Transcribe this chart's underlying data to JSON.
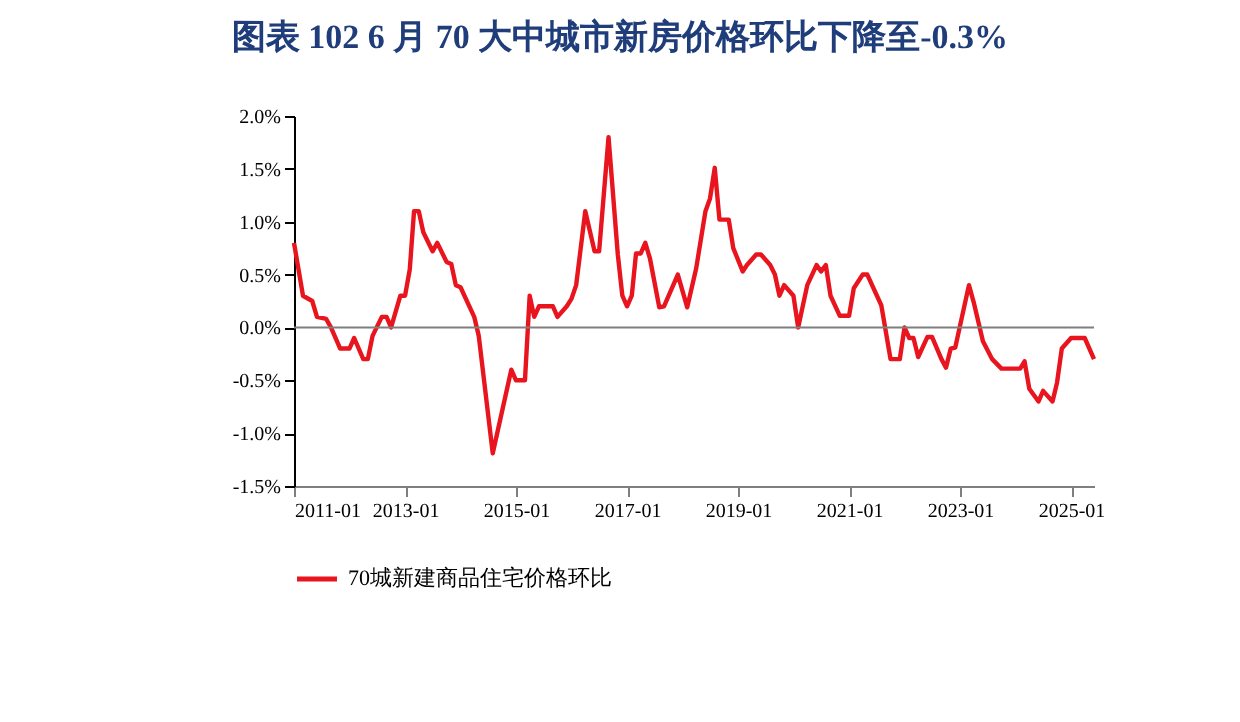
{
  "chart_data": {
    "type": "line",
    "title": "图表 102   6 月 70 大中城市新房价格环比下降至-0.3%",
    "x": [
      "2011-01",
      "2011-03",
      "2011-05",
      "2011-06",
      "2011-08",
      "2011-09",
      "2011-11",
      "2012-01",
      "2012-02",
      "2012-04",
      "2012-05",
      "2012-06",
      "2012-08",
      "2012-09",
      "2012-10",
      "2012-12",
      "2013-01",
      "2013-02",
      "2013-03",
      "2013-04",
      "2013-05",
      "2013-07",
      "2013-08",
      "2013-10",
      "2013-11",
      "2013-12",
      "2014-01",
      "2014-04",
      "2014-05",
      "2014-08",
      "2014-12",
      "2015-01",
      "2015-03",
      "2015-04",
      "2015-05",
      "2015-06",
      "2015-09",
      "2015-10",
      "2015-12",
      "2016-01",
      "2016-02",
      "2016-04",
      "2016-06",
      "2016-07",
      "2016-09",
      "2016-11",
      "2016-12",
      "2017-01",
      "2017-02",
      "2017-03",
      "2017-04",
      "2017-05",
      "2017-06",
      "2017-08",
      "2017-09",
      "2017-12",
      "2018-02",
      "2018-04",
      "2018-06",
      "2018-07",
      "2018-08",
      "2018-09",
      "2018-11",
      "2018-12",
      "2019-02",
      "2019-03",
      "2019-05",
      "2019-06",
      "2019-08",
      "2019-09",
      "2019-10",
      "2019-11",
      "2020-01",
      "2020-02",
      "2020-04",
      "2020-06",
      "2020-07",
      "2020-08",
      "2020-09",
      "2020-11",
      "2021-01",
      "2021-02",
      "2021-04",
      "2021-05",
      "2021-08",
      "2021-10",
      "2021-12",
      "2022-01",
      "2022-02",
      "2022-03",
      "2022-04",
      "2022-06",
      "2022-07",
      "2022-09",
      "2022-10",
      "2022-11",
      "2022-12",
      "2023-03",
      "2023-04",
      "2023-06",
      "2023-08",
      "2023-10",
      "2024-02",
      "2024-03",
      "2024-04",
      "2024-06",
      "2024-07",
      "2024-09",
      "2024-10",
      "2024-11",
      "2025-01",
      "2025-04",
      "2025-06"
    ],
    "series": [
      {
        "name": "70城新建商品住宅价格环比",
        "color": "#e8141e",
        "values": [
          0.8,
          0.3,
          0.25,
          0.1,
          0.08,
          0,
          -0.2,
          -0.2,
          -0.1,
          -0.3,
          -0.3,
          -0.08,
          0.1,
          0.1,
          0,
          0.3,
          0.3,
          0.55,
          1.1,
          1.1,
          0.9,
          0.72,
          0.8,
          0.62,
          0.6,
          0.4,
          0.38,
          0.1,
          -0.08,
          -1.19,
          -0.4,
          -0.5,
          -0.5,
          0.3,
          0.1,
          0.2,
          0.2,
          0.1,
          0.2,
          0.27,
          0.4,
          1.1,
          0.72,
          0.72,
          1.8,
          0.69,
          0.3,
          0.2,
          0.3,
          0.7,
          0.7,
          0.8,
          0.65,
          0.19,
          0.2,
          0.5,
          0.19,
          0.56,
          1.1,
          1.22,
          1.51,
          1.02,
          1.02,
          0.75,
          0.53,
          0.59,
          0.69,
          0.69,
          0.59,
          0.5,
          0.3,
          0.4,
          0.3,
          0,
          0.4,
          0.59,
          0.53,
          0.59,
          0.3,
          0.11,
          0.11,
          0.37,
          0.5,
          0.5,
          0.21,
          -0.3,
          -0.3,
          0,
          -0.1,
          -0.1,
          -0.28,
          -0.09,
          -0.09,
          -0.3,
          -0.38,
          -0.2,
          -0.19,
          0.4,
          0.24,
          -0.13,
          -0.3,
          -0.39,
          -0.39,
          -0.32,
          -0.58,
          -0.7,
          -0.6,
          -0.7,
          -0.52,
          -0.2,
          -0.1,
          -0.1,
          -0.3
        ]
      }
    ],
    "xlim": [
      "2011-01",
      "2025-06"
    ],
    "xticks": [
      "2011-01",
      "2013-01",
      "2015-01",
      "2017-01",
      "2019-01",
      "2021-01",
      "2023-01",
      "2025-01"
    ],
    "ylim": [
      -1.5,
      2.0
    ],
    "yticks": [
      {
        "value": -1.5,
        "label": "-1.5%"
      },
      {
        "value": -1.0,
        "label": "-1.0%"
      },
      {
        "value": -0.5,
        "label": "-0.5%"
      },
      {
        "value": 0,
        "label": "0.0%"
      },
      {
        "value": 0.5,
        "label": "0.5%"
      },
      {
        "value": 1.0,
        "label": "1.0%"
      },
      {
        "value": 1.5,
        "label": "1.5%"
      },
      {
        "value": 2.0,
        "label": "2.0%"
      }
    ],
    "ref_lines": [
      {
        "axis": "y",
        "value": 0,
        "color": "#7f7f7f"
      }
    ],
    "legend": "bottom",
    "grid": false,
    "line_style": "solid",
    "marker": "none"
  }
}
